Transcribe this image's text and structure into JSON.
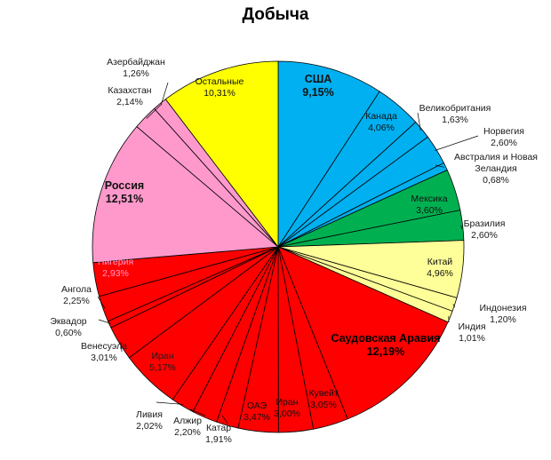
{
  "chart_data": {
    "type": "pie",
    "title": "Добыча",
    "slices": [
      {
        "label": "США",
        "value": 9.15,
        "value_text": "9,15%",
        "color": "#00b0f0"
      },
      {
        "label": "Канада",
        "value": 4.06,
        "value_text": "4,06%",
        "color": "#00b0f0"
      },
      {
        "label": "Великобритания",
        "value": 1.63,
        "value_text": "1,63%",
        "color": "#00b0f0"
      },
      {
        "label": "Норвегия",
        "value": 2.6,
        "value_text": "2,60%",
        "color": "#00b0f0"
      },
      {
        "label": "Австралия и Новая Зеландия",
        "value": 0.68,
        "value_text": "0,68%",
        "color": "#00b0f0"
      },
      {
        "label": "Мексика",
        "value": 3.6,
        "value_text": "3,60%",
        "color": "#00b050"
      },
      {
        "label": "Бразилия",
        "value": 2.6,
        "value_text": "2,60%",
        "color": "#00b050"
      },
      {
        "label": "Китай",
        "value": 4.96,
        "value_text": "4,96%",
        "color": "#ffff99"
      },
      {
        "label": "Индонезия",
        "value": 1.2,
        "value_text": "1,20%",
        "color": "#ffff99"
      },
      {
        "label": "Индия",
        "value": 1.01,
        "value_text": "1,01%",
        "color": "#ffff99"
      },
      {
        "label": "Саудовская Аравия",
        "value": 12.19,
        "value_text": "12,19%",
        "color": "#ff0000"
      },
      {
        "label": "Кувейт",
        "value": 3.05,
        "value_text": "3,05%",
        "color": "#ff0000"
      },
      {
        "label": "Иран",
        "value": 3.0,
        "value_text": "3,00%",
        "color": "#ff0000"
      },
      {
        "label": "ОАЭ",
        "value": 3.47,
        "value_text": "3,47%",
        "color": "#ff0000"
      },
      {
        "label": "Катар",
        "value": 1.91,
        "value_text": "1,91%",
        "color": "#ff0000"
      },
      {
        "label": "Алжир",
        "value": 2.2,
        "value_text": "2,20%",
        "color": "#ff0000"
      },
      {
        "label": "Ливия",
        "value": 2.02,
        "value_text": "2,02%",
        "color": "#ff0000"
      },
      {
        "label": "Иран",
        "value": 5.17,
        "value_text": "5,17%",
        "color": "#ff0000"
      },
      {
        "label": "Венесуэла",
        "value": 3.01,
        "value_text": "3,01%",
        "color": "#ff0000"
      },
      {
        "label": "Эквадор",
        "value": 0.6,
        "value_text": "0,60%",
        "color": "#ff0000"
      },
      {
        "label": "Ангола",
        "value": 2.25,
        "value_text": "2,25%",
        "color": "#ff0000"
      },
      {
        "label": "Нигерия",
        "value": 2.93,
        "value_text": "2,93%",
        "color": "#ff0000"
      },
      {
        "label": "Россия",
        "value": 12.51,
        "value_text": "12,51%",
        "color": "#ff99cc"
      },
      {
        "label": "Казахстан",
        "value": 2.14,
        "value_text": "2,14%",
        "color": "#ff99cc"
      },
      {
        "label": "Азербайджан",
        "value": 1.26,
        "value_text": "1,26%",
        "color": "#ff99cc"
      },
      {
        "label": "Остальные",
        "value": 10.31,
        "value_text": "10,31%",
        "color": "#ffff00"
      }
    ]
  }
}
